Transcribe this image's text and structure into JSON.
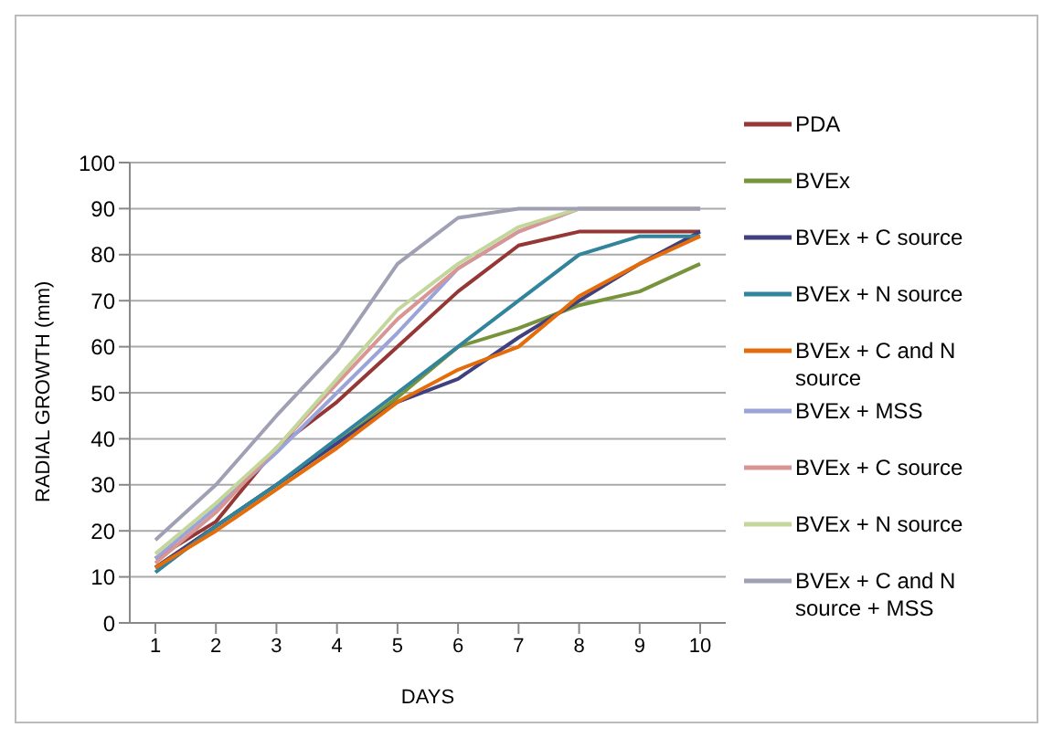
{
  "chart_data": {
    "type": "line",
    "xlabel": "DAYS",
    "ylabel": "RADIAL GROWTH (mm)",
    "categories": [
      "1",
      "2",
      "3",
      "4",
      "5",
      "6",
      "7",
      "8",
      "9",
      "10"
    ],
    "ylim": [
      0,
      100
    ],
    "yticks": [
      0,
      10,
      20,
      30,
      40,
      50,
      60,
      70,
      80,
      90,
      100
    ],
    "grid": "y",
    "legend": "right",
    "marker": "none",
    "line_style": "solid",
    "series": [
      {
        "name": "PDA",
        "color": "#953735",
        "values": [
          14,
          22,
          38,
          48,
          60,
          72,
          82,
          85,
          85,
          85
        ]
      },
      {
        "name": "BVEx",
        "color": "#77933c",
        "values": [
          12,
          21,
          30,
          39,
          49,
          60,
          64,
          69,
          72,
          78
        ]
      },
      {
        "name": "BVEx + C source",
        "color": "#404080",
        "values": [
          12,
          21,
          30,
          39,
          48,
          53,
          62,
          70,
          78,
          85
        ]
      },
      {
        "name": "BVEx + N source",
        "color": "#31849b",
        "values": [
          11,
          21,
          30,
          40,
          50,
          60,
          70,
          80,
          84,
          84
        ]
      },
      {
        "name": "BVEx + C and  N source",
        "color": "#e46c0a",
        "values": [
          12,
          20,
          29,
          38,
          48,
          55,
          60,
          71,
          78,
          84
        ]
      },
      {
        "name": "BVEx + MSS",
        "color": "#9aa4d8",
        "values": [
          14,
          25,
          37,
          50,
          63,
          77,
          85,
          90,
          90,
          90
        ]
      },
      {
        "name": "BVEx + C source",
        "color": "#d99594",
        "values": [
          13,
          24,
          38,
          52,
          66,
          77,
          85,
          90,
          90,
          90
        ]
      },
      {
        "name": "BVEx + N source",
        "color": "#c3d69b",
        "values": [
          15,
          26,
          38,
          53,
          68,
          78,
          86,
          90,
          90,
          90
        ]
      },
      {
        "name": "BVEx + C and N source + MSS",
        "color": "#a0a0b4",
        "values": [
          18,
          30,
          45,
          59,
          78,
          88,
          90,
          90,
          90,
          90
        ]
      }
    ]
  }
}
